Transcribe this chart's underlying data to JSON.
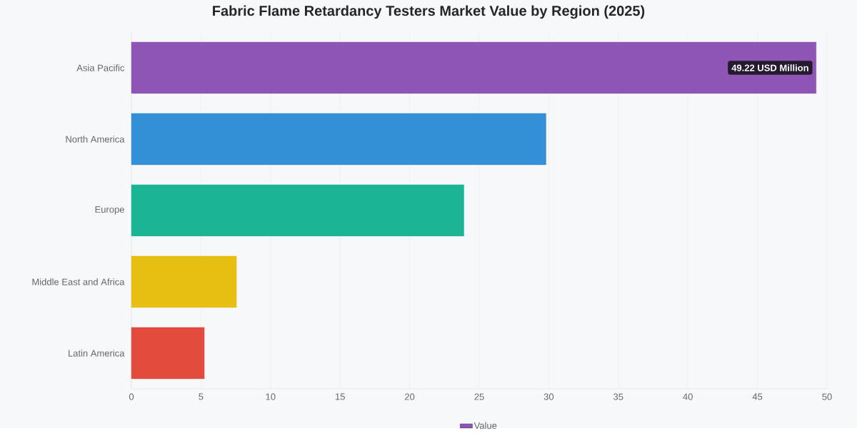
{
  "chart_data": {
    "type": "bar",
    "orientation": "horizontal",
    "title": "Fabric Flame Retardancy Testers Market Value by Region (2025)",
    "categories": [
      "Asia Pacific",
      "North America",
      "Europe",
      "Middle East and Africa",
      "Latin America"
    ],
    "series": [
      {
        "name": "Value",
        "color": "#8e55b5",
        "colors": [
          "#8e55b5",
          "#3390d6",
          "#1bb595",
          "#e8be10",
          "#e34c3d"
        ],
        "values": [
          49.22,
          29.8,
          23.9,
          7.55,
          5.24
        ],
        "value_labels": [
          "49.22 USD Million",
          null,
          null,
          null,
          null
        ]
      }
    ],
    "xlim": [
      0,
      50
    ],
    "xticks": [
      0,
      5,
      10,
      15,
      20,
      25,
      30,
      35,
      40,
      45,
      50
    ],
    "grid": "x",
    "legend": "bottom"
  }
}
